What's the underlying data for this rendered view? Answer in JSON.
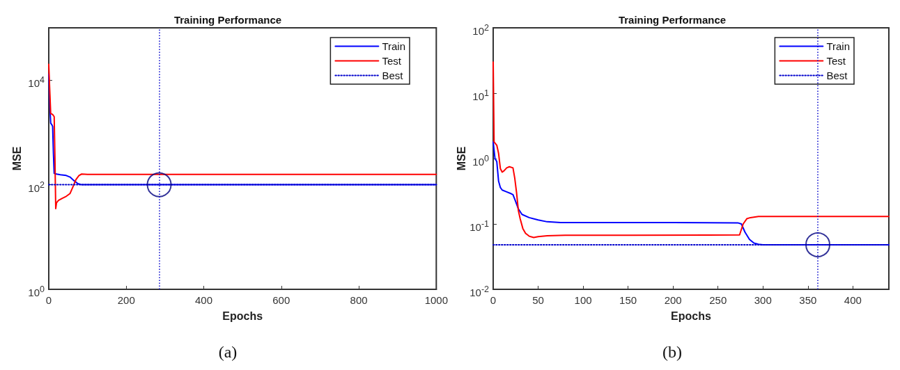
{
  "chart_data": [
    {
      "type": "line",
      "title": "Training Performance",
      "xlabel": "Epochs",
      "ylabel": "MSE",
      "log": "y",
      "xlim": [
        0,
        1000
      ],
      "xticks": [
        0,
        200,
        400,
        600,
        800,
        1000
      ],
      "ylim": [
        1,
        100000
      ],
      "yticks": [
        {
          "value": 1,
          "label": "10$^{0}$"
        },
        {
          "value": 100,
          "label": "10$^{2}$"
        },
        {
          "value": 10000,
          "label": "10$^{4}$"
        }
      ],
      "grid": false,
      "legend": "top right",
      "annotations": [
        "(a)"
      ],
      "ref_lines": [
        {
          "axis": "x",
          "value": 285,
          "color": "#0000cc",
          "line_style": "dotted"
        }
      ],
      "series": [
        {
          "name": "Train",
          "color": "#0000ff",
          "line_style": "solid",
          "marker": "none",
          "x": [
            0,
            3,
            5,
            8,
            10,
            12,
            14,
            20,
            30,
            45,
            55,
            65,
            75,
            85,
            100,
            285,
            1000
          ],
          "values": [
            13000,
            3000,
            1500,
            1400,
            1300,
            400,
            165,
            160,
            155,
            150,
            140,
            120,
            105,
            100,
            100,
            100,
            100
          ]
        },
        {
          "name": "Test",
          "color": "#ff0000",
          "line_style": "solid",
          "marker": "none",
          "x": [
            0,
            2,
            5,
            10,
            14,
            16,
            18,
            20,
            25,
            35,
            45,
            55,
            62,
            70,
            78,
            85,
            100,
            300,
            1000
          ],
          "values": [
            20000,
            8000,
            2300,
            2200,
            2000,
            300,
            35,
            45,
            50,
            55,
            60,
            68,
            90,
            125,
            150,
            160,
            158,
            158,
            158
          ]
        },
        {
          "name": "Best",
          "color": "#0000cc",
          "line_style": "dotted",
          "marker": "none",
          "x": [
            0,
            1000
          ],
          "values": [
            100,
            100
          ]
        },
        {
          "type": "scatter",
          "color": "#000080",
          "marker": "circle",
          "x": [
            285
          ],
          "values": [
            100
          ]
        }
      ]
    },
    {
      "type": "line",
      "title": "Training Performance",
      "xlabel": "Epochs",
      "ylabel": "MSE",
      "log": "y",
      "xlim": [
        0,
        440
      ],
      "xticks": [
        0,
        50,
        100,
        150,
        200,
        250,
        300,
        350,
        400
      ],
      "ylim": [
        0.01,
        100
      ],
      "yticks": [
        {
          "value": 0.01,
          "label": "10$^{-2}$"
        },
        {
          "value": 0.1,
          "label": "10$^{-1}$"
        },
        {
          "value": 1,
          "label": "10$^{0}$"
        },
        {
          "value": 10,
          "label": "10$^{1}$"
        },
        {
          "value": 100,
          "label": "10$^{2}$"
        }
      ],
      "grid": false,
      "legend": "top right",
      "annotations": [
        "(b)"
      ],
      "ref_lines": [
        {
          "axis": "x",
          "value": 361,
          "color": "#0000cc",
          "line_style": "dotted"
        }
      ],
      "series": [
        {
          "name": "Train",
          "color": "#0000ff",
          "line_style": "solid",
          "marker": "none",
          "x": [
            0,
            2,
            4,
            6,
            8,
            10,
            15,
            20,
            22,
            25,
            28,
            32,
            40,
            50,
            60,
            75,
            100,
            200,
            272,
            276,
            280,
            285,
            290,
            295,
            300,
            440
          ],
          "values": [
            1.8,
            1.0,
            0.9,
            0.45,
            0.36,
            0.33,
            0.31,
            0.29,
            0.28,
            0.22,
            0.17,
            0.14,
            0.125,
            0.115,
            0.108,
            0.105,
            0.105,
            0.105,
            0.104,
            0.1,
            0.075,
            0.058,
            0.051,
            0.049,
            0.048,
            0.048
          ]
        },
        {
          "name": "Test",
          "color": "#ff0000",
          "line_style": "solid",
          "marker": "none",
          "x": [
            0,
            1,
            4,
            6,
            8,
            10,
            12,
            15,
            18,
            22,
            24,
            26,
            28,
            30,
            33,
            36,
            40,
            45,
            50,
            60,
            80,
            150,
            274,
            278,
            282,
            286,
            295,
            440
          ],
          "values": [
            30,
            1.8,
            1.6,
            1.2,
            0.7,
            0.62,
            0.65,
            0.72,
            0.75,
            0.72,
            0.5,
            0.3,
            0.16,
            0.12,
            0.085,
            0.072,
            0.065,
            0.062,
            0.064,
            0.066,
            0.067,
            0.067,
            0.068,
            0.1,
            0.12,
            0.125,
            0.13,
            0.13
          ]
        },
        {
          "name": "Best",
          "color": "#0000cc",
          "line_style": "dotted",
          "marker": "none",
          "x": [
            0,
            440
          ],
          "values": [
            0.048,
            0.048
          ]
        },
        {
          "type": "scatter",
          "color": "#000080",
          "marker": "circle",
          "x": [
            361
          ],
          "values": [
            0.048
          ]
        }
      ]
    }
  ]
}
